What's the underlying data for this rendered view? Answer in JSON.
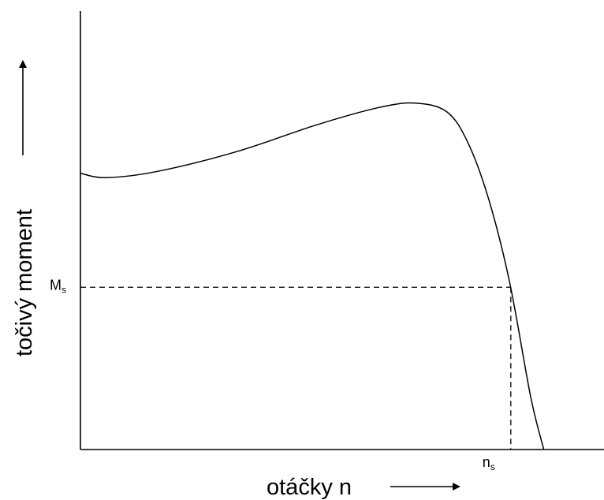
{
  "chart_data": {
    "type": "line",
    "title": "",
    "xlabel": "otáčky n",
    "ylabel": "točivý moment",
    "xlim": [
      0,
      100
    ],
    "ylim": [
      0,
      100
    ],
    "grid": false,
    "legend": "none",
    "series": [
      {
        "values": [
          {
            "x": 0,
            "y": 63
          },
          {
            "x": 5,
            "y": 62
          },
          {
            "x": 15,
            "y": 63.5
          },
          {
            "x": 30,
            "y": 68
          },
          {
            "x": 45,
            "y": 74
          },
          {
            "x": 57,
            "y": 78
          },
          {
            "x": 64,
            "y": 79
          },
          {
            "x": 70,
            "y": 77
          },
          {
            "x": 74,
            "y": 70
          },
          {
            "x": 78,
            "y": 57
          },
          {
            "x": 82,
            "y": 38
          },
          {
            "x": 86,
            "y": 12
          },
          {
            "x": 88.5,
            "y": 0
          }
        ]
      }
    ],
    "annotations": {
      "Ms": {
        "main": "M",
        "sub": "s",
        "y": 37
      },
      "ns": {
        "main": "n",
        "sub": "s",
        "x": 82.2
      }
    }
  }
}
